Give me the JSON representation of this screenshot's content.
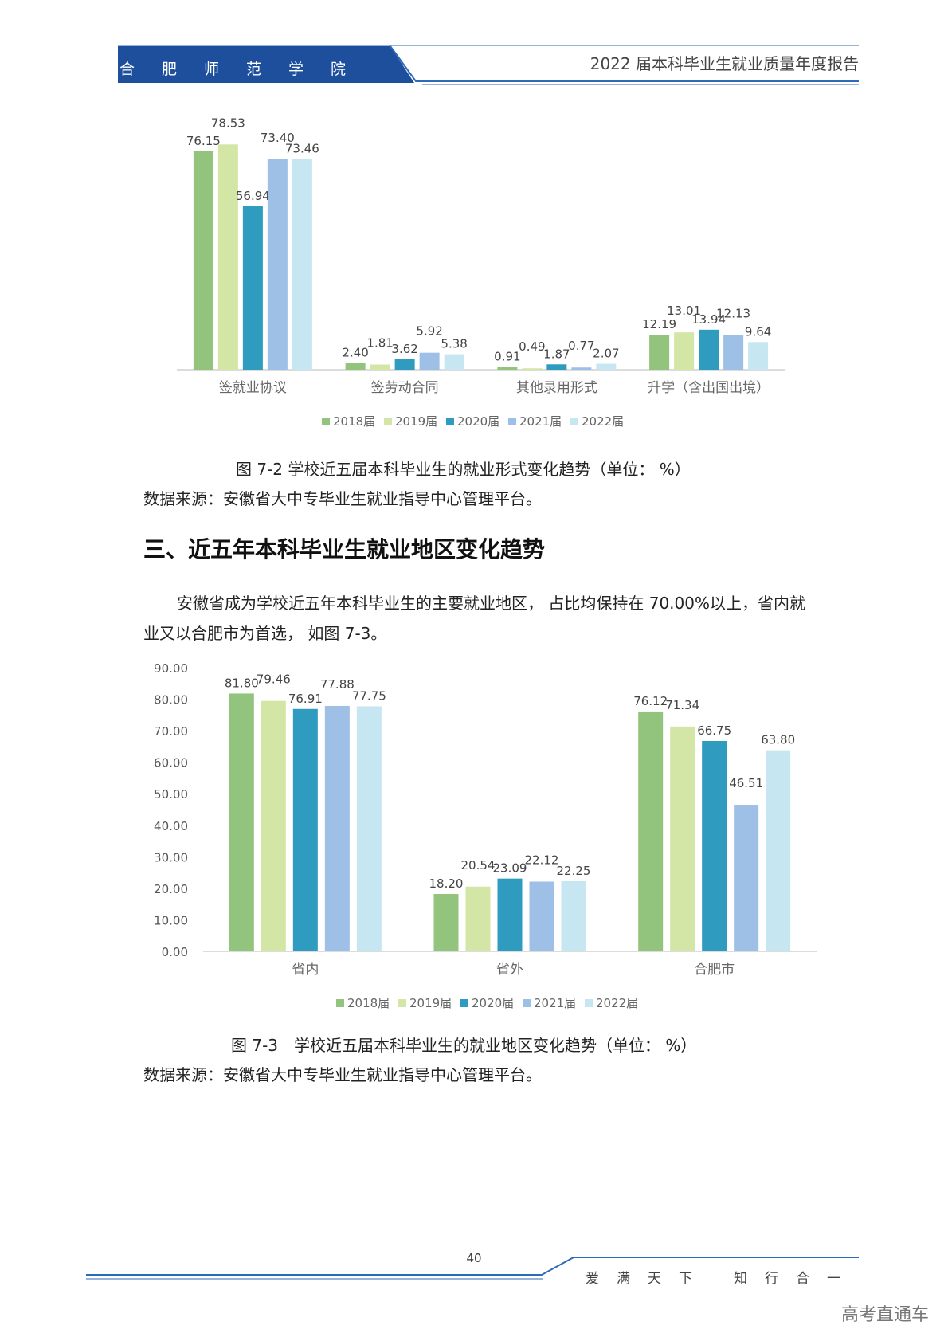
{
  "header": {
    "school_name": "合肥师范学院",
    "report_title": "2022 届本科毕业生就业质量年度报告"
  },
  "colors": {
    "header_blue": "#1d4f9c",
    "rule_blue": "#2d6ab7",
    "series": [
      "#93c47d",
      "#d4e6a5",
      "#2e9bbf",
      "#9fc0e6",
      "#c6e6f2"
    ]
  },
  "chart_data": [
    {
      "type": "bar",
      "categories": [
        "签就业协议",
        "签劳动合同",
        "其他录用形式",
        "升学（含出国出境）"
      ],
      "series": [
        {
          "name": "2018届",
          "values": [
            76.15,
            2.4,
            0.91,
            12.19
          ]
        },
        {
          "name": "2019届",
          "values": [
            78.53,
            1.81,
            0.49,
            13.01
          ]
        },
        {
          "name": "2020届",
          "values": [
            56.94,
            3.62,
            1.87,
            13.94
          ]
        },
        {
          "name": "2021届",
          "values": [
            73.4,
            5.92,
            0.77,
            12.13
          ]
        },
        {
          "name": "2022届",
          "values": [
            73.46,
            5.38,
            2.07,
            9.64
          ]
        }
      ],
      "data_labels": [
        [
          "76.15",
          "2.40",
          "0.91",
          "12.19"
        ],
        [
          "78.53",
          "1.81",
          "0.49",
          "13.01"
        ],
        [
          "56.94",
          "3.62",
          "1.87",
          "13.94"
        ],
        [
          "73.40",
          "5.92",
          "0.77",
          "12.13"
        ],
        [
          "73.46",
          "5.38",
          "2.07",
          "9.64"
        ]
      ],
      "ylim": [
        0,
        85
      ],
      "y_axis_shown": false,
      "grid": false,
      "legend_position": "bottom",
      "caption": "图 7-2 学校近五届本科毕业生的就业形式变化趋势（单位： %）",
      "source": "数据来源：安徽省大中专毕业生就业指导中心管理平台。"
    },
    {
      "type": "bar",
      "categories": [
        "省内",
        "省外",
        "合肥市"
      ],
      "series": [
        {
          "name": "2018届",
          "values": [
            81.8,
            18.2,
            76.12
          ]
        },
        {
          "name": "2019届",
          "values": [
            79.46,
            20.54,
            71.34
          ]
        },
        {
          "name": "2020届",
          "values": [
            76.91,
            23.09,
            66.75
          ]
        },
        {
          "name": "2021届",
          "values": [
            77.88,
            22.12,
            46.51
          ]
        },
        {
          "name": "2022届",
          "values": [
            77.75,
            22.25,
            63.8
          ]
        }
      ],
      "data_labels": [
        [
          "81.80",
          "18.20",
          "76.12"
        ],
        [
          "79.46",
          "20.54",
          "71.34"
        ],
        [
          "76.91",
          "23.09",
          "66.75"
        ],
        [
          "77.88",
          "22.12",
          "46.51"
        ],
        [
          "77.75",
          "22.25",
          "63.80"
        ]
      ],
      "ylim": [
        0,
        90
      ],
      "y_ticks": [
        "0.00",
        "10.00",
        "20.00",
        "30.00",
        "40.00",
        "50.00",
        "60.00",
        "70.00",
        "80.00",
        "90.00"
      ],
      "grid": false,
      "legend_position": "bottom",
      "caption": "图 7-3　学校近五届本科毕业生的就业地区变化趋势（单位： %）",
      "source": "数据来源：安徽省大中专毕业生就业指导中心管理平台。"
    }
  ],
  "section": {
    "heading": "三、近五年本科毕业生就业地区变化趋势",
    "paragraph": "安徽省成为学校近五年本科毕业生的主要就业地区， 占比均保持在 70.00%以上，省内就业又以合肥市为首选， 如图 7-3。"
  },
  "footer": {
    "page_number": "40",
    "motto": [
      "爱",
      "满",
      "天",
      "下",
      "知",
      "行",
      "合",
      "一"
    ],
    "watermark": "高考直通车"
  }
}
